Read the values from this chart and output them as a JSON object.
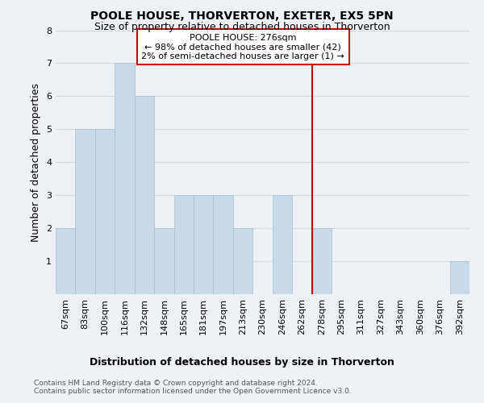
{
  "title": "POOLE HOUSE, THORVERTON, EXETER, EX5 5PN",
  "subtitle": "Size of property relative to detached houses in Thorverton",
  "xlabel": "Distribution of detached houses by size in Thorverton",
  "ylabel": "Number of detached properties",
  "footnote1": "Contains HM Land Registry data © Crown copyright and database right 2024.",
  "footnote2": "Contains public sector information licensed under the Open Government Licence v3.0.",
  "bin_labels": [
    "67sqm",
    "83sqm",
    "100sqm",
    "116sqm",
    "132sqm",
    "148sqm",
    "165sqm",
    "181sqm",
    "197sqm",
    "213sqm",
    "230sqm",
    "246sqm",
    "262sqm",
    "278sqm",
    "295sqm",
    "311sqm",
    "327sqm",
    "343sqm",
    "360sqm",
    "376sqm",
    "392sqm"
  ],
  "bar_values": [
    2,
    5,
    5,
    7,
    6,
    2,
    3,
    3,
    3,
    2,
    0,
    3,
    0,
    2,
    0,
    0,
    0,
    0,
    0,
    0,
    1
  ],
  "bar_color": "#c8d9e8",
  "bar_edgecolor": "#a8bfcf",
  "grid_color": "#d0dae2",
  "vline_x_index": 13,
  "vline_color": "#cc0000",
  "annotation_text": "POOLE HOUSE: 276sqm\n← 98% of detached houses are smaller (42)\n2% of semi-detached houses are larger (1) →",
  "annotation_box_edgecolor": "#cc0000",
  "ylim": [
    0,
    8
  ],
  "yticks": [
    0,
    1,
    2,
    3,
    4,
    5,
    6,
    7,
    8
  ],
  "background_color": "#eef2f6",
  "plot_bg_color": "#eef2f6",
  "title_fontsize": 10,
  "subtitle_fontsize": 9,
  "ylabel_fontsize": 9,
  "xlabel_fontsize": 9,
  "tick_fontsize": 8,
  "annot_fontsize": 8
}
